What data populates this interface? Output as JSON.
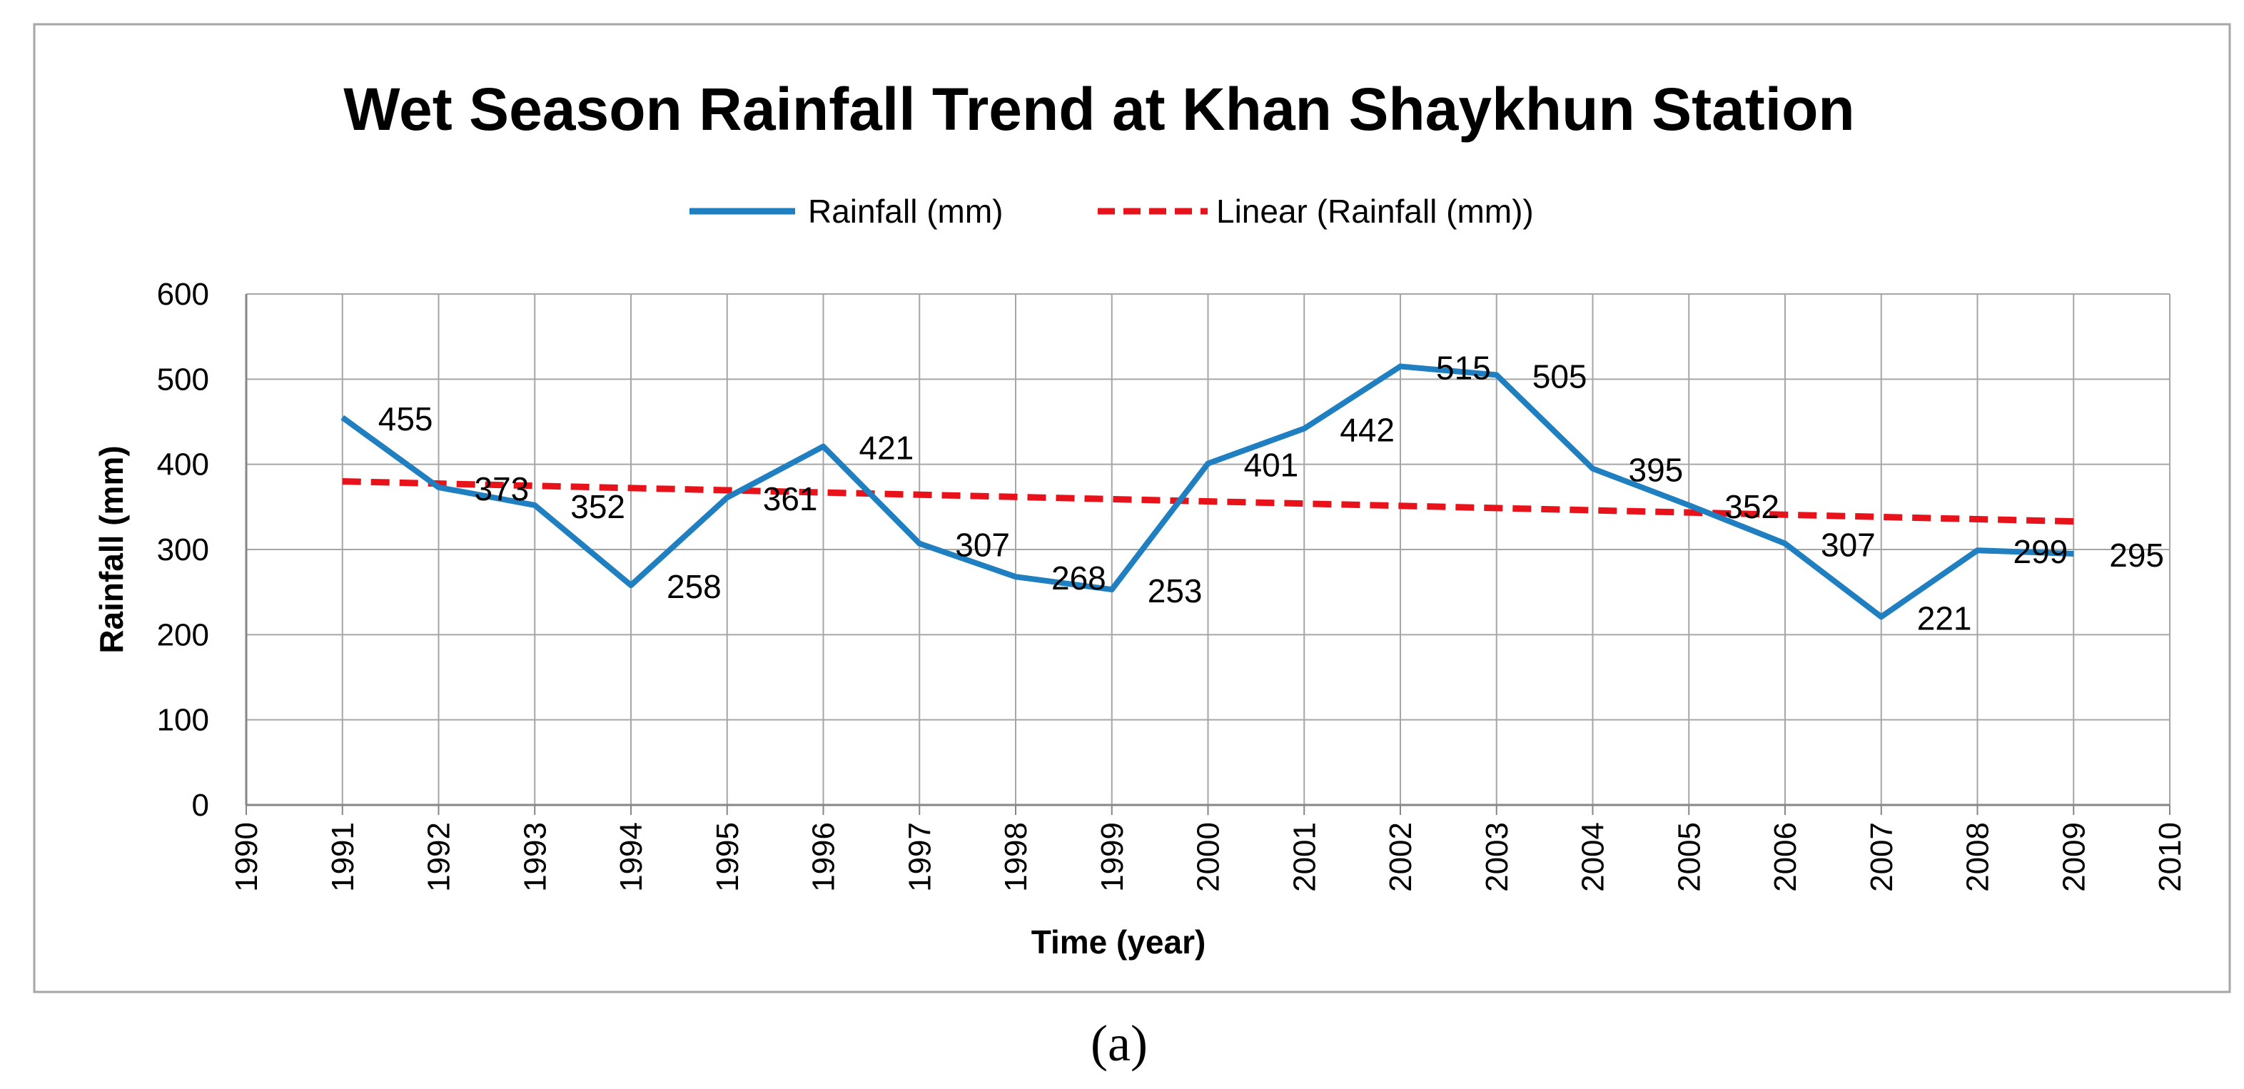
{
  "chart_data": {
    "type": "line",
    "title": "Wet Season Rainfall Trend at Khan Shaykhun Station",
    "xlabel": "Time (year)",
    "ylabel": "Rainfall (mm)",
    "xlim": [
      1990,
      2010
    ],
    "ylim": [
      0,
      600
    ],
    "x_ticks": [
      1990,
      1991,
      1992,
      1993,
      1994,
      1995,
      1996,
      1997,
      1998,
      1999,
      2000,
      2001,
      2002,
      2003,
      2004,
      2005,
      2006,
      2007,
      2008,
      2009,
      2010
    ],
    "y_ticks": [
      0,
      100,
      200,
      300,
      400,
      500,
      600
    ],
    "grid": true,
    "legend_position": "top-center",
    "series": [
      {
        "name": "Rainfall (mm)",
        "color": "#1f7fc0",
        "style": "solid",
        "x": [
          1991,
          1992,
          1993,
          1994,
          1995,
          1996,
          1997,
          1998,
          1999,
          2000,
          2001,
          2002,
          2003,
          2004,
          2005,
          2006,
          2007,
          2008,
          2009
        ],
        "values": [
          455,
          373,
          352,
          258,
          361,
          421,
          307,
          268,
          253,
          401,
          442,
          515,
          505,
          395,
          352,
          307,
          221,
          299,
          295
        ],
        "data_labels": [
          "455",
          "373",
          "352",
          "258",
          "361",
          "421",
          "307",
          "268",
          "253",
          "401",
          "442",
          "515",
          "505",
          "395",
          "352",
          "307",
          "221",
          "299",
          "295"
        ]
      },
      {
        "name": "Linear (Rainfall (mm))",
        "color": "#e8121a",
        "style": "dashed",
        "x": [
          1991,
          2009
        ],
        "values": [
          380,
          333
        ]
      }
    ]
  },
  "caption": "(a)"
}
